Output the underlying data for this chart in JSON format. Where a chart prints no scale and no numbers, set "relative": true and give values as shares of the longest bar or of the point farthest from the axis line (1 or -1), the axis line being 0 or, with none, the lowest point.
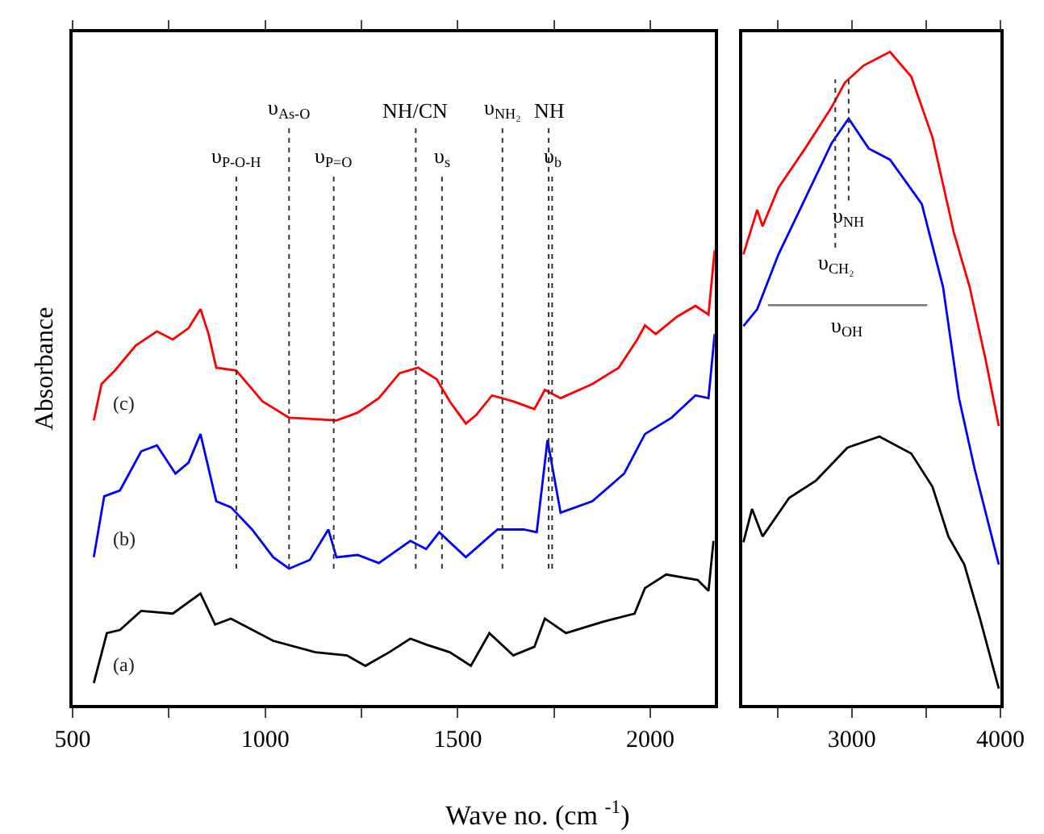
{
  "chart_data": [
    {
      "type": "line",
      "xlabel": "Wave no. (cm $^{-1}$)",
      "ylabel": "Absorbance",
      "relative": true,
      "xlim": [
        500,
        2167
      ],
      "xticks": [
        500,
        {
          "value": 750,
          "label": null
        },
        1000,
        {
          "value": 1250,
          "label": null
        },
        1500,
        {
          "value": 1750,
          "label": null
        },
        2000
      ],
      "legend": false,
      "marker": "none",
      "line_style": "solid",
      "series": [
        {
          "name": "(c)",
          "color": "#ff0000",
          "x": [
            555,
            575,
            610,
            664,
            719,
            760,
            801,
            832,
            853,
            873,
            925,
            993,
            1062,
            1130,
            1185,
            1240,
            1295,
            1349,
            1397,
            1445,
            1479,
            1521,
            1548,
            1589,
            1644,
            1699,
            1726,
            1767,
            1849,
            1918,
            1966,
            1986,
            2014,
            2069,
            2117,
            2151,
            2167
          ],
          "values": [
            0.626,
            0.706,
            0.736,
            0.791,
            0.822,
            0.804,
            0.829,
            0.871,
            0.816,
            0.742,
            0.736,
            0.668,
            0.632,
            0.629,
            0.626,
            0.643,
            0.675,
            0.73,
            0.742,
            0.717,
            0.668,
            0.619,
            0.638,
            0.681,
            0.668,
            0.651,
            0.693,
            0.675,
            0.706,
            0.742,
            0.804,
            0.835,
            0.816,
            0.854,
            0.878,
            0.859,
            1.0
          ]
        },
        {
          "name": "(b)",
          "color": "#0000ff",
          "x": [
            555,
            582,
            623,
            678,
            719,
            767,
            801,
            832,
            873,
            911,
            966,
            1021,
            1062,
            1116,
            1164,
            1185,
            1240,
            1295,
            1377,
            1418,
            1452,
            1521,
            1603,
            1671,
            1705,
            1733,
            1767,
            1849,
            1932,
            1986,
            2055,
            2117,
            2151,
            2167
          ],
          "values": [
            0.325,
            0.459,
            0.472,
            0.558,
            0.571,
            0.509,
            0.533,
            0.596,
            0.448,
            0.435,
            0.386,
            0.325,
            0.3,
            0.319,
            0.386,
            0.325,
            0.33,
            0.312,
            0.361,
            0.343,
            0.38,
            0.325,
            0.386,
            0.386,
            0.38,
            0.583,
            0.423,
            0.448,
            0.509,
            0.596,
            0.632,
            0.681,
            0.675,
            0.816
          ]
        },
        {
          "name": "(a)",
          "color": "#000000",
          "x": [
            555,
            589,
            623,
            678,
            760,
            832,
            870,
            911,
            1021,
            1130,
            1212,
            1260,
            1322,
            1377,
            1418,
            1479,
            1534,
            1582,
            1644,
            1699,
            1726,
            1781,
            1877,
            1959,
            1986,
            2041,
            2123,
            2151,
            2164
          ],
          "values": [
            0.048,
            0.158,
            0.165,
            0.207,
            0.201,
            0.245,
            0.177,
            0.19,
            0.141,
            0.116,
            0.109,
            0.086,
            0.116,
            0.146,
            0.133,
            0.116,
            0.086,
            0.158,
            0.109,
            0.128,
            0.19,
            0.158,
            0.183,
            0.201,
            0.257,
            0.287,
            0.275,
            0.251,
            0.361
          ]
        }
      ],
      "ref_lines": [
        {
          "axis": "x",
          "value": 925,
          "label": "υ$_{P-O-H}$",
          "color": "#333333",
          "line_style": "dotted"
        },
        {
          "axis": "x",
          "value": 1062,
          "label": "υ$_{As-O}$",
          "color": "#333333",
          "line_style": "dotted"
        },
        {
          "axis": "x",
          "value": 1178,
          "label": "υ$_{P=O}$",
          "color": "#333333",
          "line_style": "dotted"
        },
        {
          "axis": "x",
          "value": 1391,
          "label": "NH/CN",
          "color": "#333333",
          "line_style": "dotted"
        },
        {
          "axis": "x",
          "value": 1459,
          "label": "υ$_{s}$",
          "color": "#333333",
          "line_style": "dotted"
        },
        {
          "axis": "x",
          "value": 1616,
          "label": "υ$_{NH₂}$",
          "color": "#333333",
          "line_style": "dotted"
        },
        {
          "axis": "x",
          "value": 1745,
          "label": "υ$_{b}$",
          "color": "#333333",
          "line_style": "dotted"
        },
        {
          "axis": "x",
          "value": 1736,
          "label": "NH",
          "color": "#333333",
          "line_style": "dotted"
        }
      ]
    },
    {
      "type": "line",
      "relative": true,
      "xlim": [
        2265,
        4000
      ],
      "xticks": [
        {
          "value": 2500,
          "label": null
        },
        3000,
        {
          "value": 3500,
          "label": null
        },
        4000
      ],
      "legend": false,
      "marker": "none",
      "line_style": "solid",
      "series": [
        {
          "color": "#ff0000",
          "x": [
            2271,
            2364,
            2400,
            2507,
            2686,
            2864,
            2954,
            3079,
            3257,
            3400,
            3543,
            3686,
            3793,
            3900,
            3989
          ],
          "values": [
            0.69,
            0.758,
            0.733,
            0.792,
            0.852,
            0.915,
            0.953,
            0.979,
            1.0,
            0.962,
            0.869,
            0.724,
            0.64,
            0.529,
            0.427
          ]
        },
        {
          "color": "#0000ff",
          "x": [
            2271,
            2364,
            2507,
            2686,
            2864,
            2979,
            3114,
            3257,
            3471,
            3614,
            3721,
            3828,
            3989
          ],
          "values": [
            0.58,
            0.606,
            0.69,
            0.775,
            0.86,
            0.898,
            0.852,
            0.835,
            0.767,
            0.64,
            0.47,
            0.36,
            0.215
          ]
        },
        {
          "color": "#000000",
          "x": [
            2271,
            2329,
            2400,
            2579,
            2757,
            2971,
            3186,
            3400,
            3543,
            3650,
            3757,
            3864,
            3989
          ],
          "values": [
            0.249,
            0.3,
            0.258,
            0.317,
            0.343,
            0.394,
            0.411,
            0.385,
            0.334,
            0.258,
            0.215,
            0.131,
            0.025
          ]
        },
        {
          "name": "υ$_{OH}$",
          "color": "#808080",
          "x": [
            2436,
            3507
          ],
          "values": [
            0.612,
            0.612
          ]
        }
      ],
      "ref_lines": [
        {
          "axis": "x",
          "value": 2889,
          "label": "υ$_{CH₂}$",
          "color": "#333333",
          "line_style": "dotted"
        },
        {
          "axis": "x",
          "value": 2979,
          "label": "υ$_{NH}$",
          "color": "#333333",
          "line_style": "dotted"
        }
      ]
    }
  ]
}
